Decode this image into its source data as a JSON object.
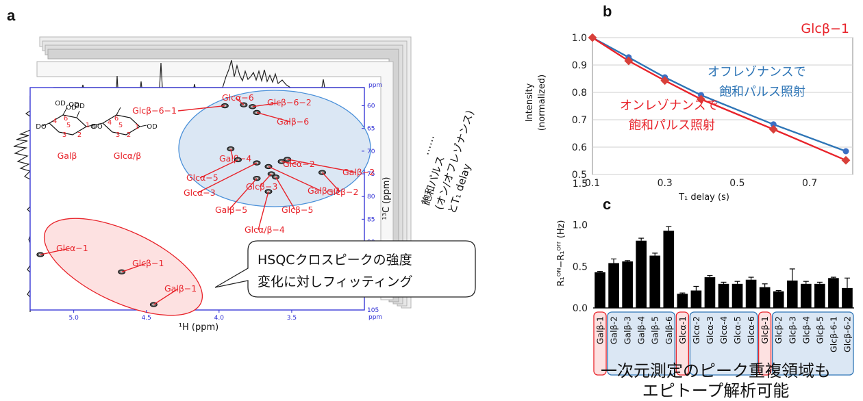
{
  "panel_labels": [
    "a",
    "b",
    "c"
  ],
  "panel_a": {
    "x_axis_label": "¹H (ppm)",
    "x_ticks": [
      "5.0",
      "4.5",
      "4.0",
      "3.5"
    ],
    "y_axis_label": "¹³C (ppm)",
    "y_ticks": [
      "60",
      "65",
      "70",
      "75",
      "80",
      "85",
      "90",
      "95",
      "100",
      "105"
    ],
    "ppm_unit": "ppm",
    "structure_labels": [
      "Galβ",
      "Glcα/β"
    ],
    "structure_atoms": [
      "OD",
      "OD",
      "OD",
      "DO",
      "O",
      "OD",
      "6",
      "4",
      "5",
      "3",
      "2",
      "1",
      "6",
      "4",
      "5",
      "3",
      "2",
      "1",
      "DO",
      "OD"
    ],
    "peaks": [
      {
        "label": "Glcβ−6−1",
        "h": 3.96,
        "c": 60.0
      },
      {
        "label": "Glcα−6",
        "h": 3.83,
        "c": 59.8
      },
      {
        "label": "Glcβ−6−2",
        "h": 3.77,
        "c": 60.2
      },
      {
        "label": "Galβ−6",
        "h": 3.74,
        "c": 61.5
      },
      {
        "label": "Galβ−4",
        "h": 3.92,
        "c": 69.5
      },
      {
        "label": "Glcα−2",
        "h": 3.57,
        "c": 72.3
      },
      {
        "label": "Galβ−2",
        "h": 3.53,
        "c": 71.8
      },
      {
        "label": "Glcα−5",
        "h": 3.87,
        "c": 71.9
      },
      {
        "label": "Glcβ−3",
        "h": 3.64,
        "c": 75.0
      },
      {
        "label": "Glcα−3",
        "h": 3.74,
        "c": 72.6
      },
      {
        "label": "Galβ−3",
        "h": 3.66,
        "c": 73.4
      },
      {
        "label": "Glcβ−2",
        "h": 3.29,
        "c": 74.7
      },
      {
        "label": "Galβ−5",
        "h": 3.74,
        "c": 76.0
      },
      {
        "label": "Glcβ−5",
        "h": 3.61,
        "c": 75.7
      },
      {
        "label": "Glcα/β−4",
        "h": 3.66,
        "c": 78.9
      },
      {
        "label": "Glcα−1",
        "h": 5.23,
        "c": 92.8
      },
      {
        "label": "Glcβ−1",
        "h": 4.67,
        "c": 96.6
      },
      {
        "label": "Galβ−1",
        "h": 4.45,
        "c": 103.8
      }
    ],
    "callout_lines": [
      "HSQCクロスピークの強度",
      "変化に対しフィッティング"
    ],
    "stack_dots": "⋯⋯",
    "stack_text_lines": [
      "飽和パルス",
      "(オン/オフレゾナンス)",
      "とT₁ delay"
    ]
  },
  "panel_b": {
    "title": "Glcβ−1",
    "ylabel_line1": "Intensity",
    "ylabel_line2": "(normalized)",
    "xlabel": "T₁ delay (s)",
    "y_ticks": [
      "1.0",
      "0.9",
      "0.8",
      "0.7",
      "0.6",
      "0.5"
    ],
    "x_ticks": [
      "0.1",
      "0.3",
      "0.5",
      "0.7"
    ],
    "off_label_lines": [
      "オフレゾナンスで",
      "飽和パルス照射"
    ],
    "on_label_lines": [
      "オンレゾナンスで",
      "飽和パルス照射"
    ],
    "colors": {
      "off": "#2e75b6",
      "on": "#e8232a",
      "off_marker": "#3b6fc4",
      "on_marker": "#d8403a"
    }
  },
  "panel_c": {
    "ylabel": "R₁ᴼᴺ−R₁ᴼᶠᶠ (Hz)",
    "y_ticks": [
      "0.0",
      "0.5",
      "1.0",
      "1.5"
    ],
    "footer_lines": [
      "一次元測定のピーク重複領域も",
      "エピトープ解析可能"
    ],
    "group_colors": {
      "red_fill": "#fde1e1",
      "red_stroke": "#e8232a",
      "blue_fill": "#dbe7f4",
      "blue_stroke": "#2e75b6"
    }
  },
  "chart_data": [
    {
      "type": "line",
      "title": "Glcβ−1",
      "xlabel": "T₁ delay (s)",
      "ylabel": "Intensity (normalized)",
      "xlim": [
        0.1,
        0.8
      ],
      "ylim": [
        0.5,
        1.0
      ],
      "x": [
        0.1,
        0.2,
        0.3,
        0.4,
        0.6,
        0.8
      ],
      "series": [
        {
          "name": "オフレゾナンスで飽和パルス照射",
          "values": [
            1.0,
            0.928,
            0.855,
            0.79,
            0.683,
            0.585
          ]
        },
        {
          "name": "オンレゾナンスで飽和パルス照射",
          "values": [
            1.0,
            0.915,
            0.843,
            0.775,
            0.665,
            0.552
          ]
        }
      ]
    },
    {
      "type": "bar",
      "ylabel": "R₁ᴼᴺ−R₁ᴼᶠᶠ (Hz)",
      "ylim": [
        0,
        1.5
      ],
      "categories": [
        "Galβ-1",
        "Galβ-2",
        "Galβ-3",
        "Galβ-4",
        "Galβ-5",
        "Galβ-6",
        "Glcα-1",
        "Glcα-2",
        "Glcα-3",
        "Glcα-4",
        "Glcα-5",
        "Glcα-6",
        "Glcβ-1",
        "Glcβ-2",
        "Glcβ-3",
        "Glcβ-4",
        "Glcβ-5",
        "Glcβ-6-1",
        "Glcβ-6-2"
      ],
      "values": [
        0.43,
        0.54,
        0.56,
        0.81,
        0.63,
        0.93,
        0.17,
        0.21,
        0.37,
        0.29,
        0.29,
        0.34,
        0.25,
        0.2,
        0.33,
        0.29,
        0.29,
        0.36,
        0.24
      ],
      "errors": [
        0.01,
        0.05,
        0.01,
        0.03,
        0.03,
        0.05,
        0.01,
        0.05,
        0.02,
        0.02,
        0.03,
        0.03,
        0.04,
        0.01,
        0.14,
        0.03,
        0.02,
        0.01,
        0.12
      ]
    }
  ]
}
